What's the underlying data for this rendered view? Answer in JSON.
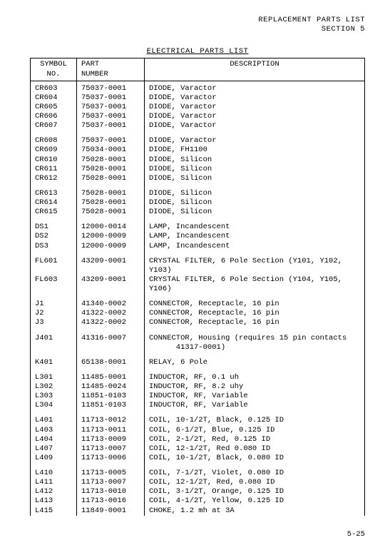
{
  "header": {
    "line1": "REPLACEMENT PARTS LIST",
    "line2": "SECTION 5"
  },
  "table_title": "ELECTRICAL PARTS LIST",
  "columns": {
    "c1": "SYMBOL\nNO.",
    "c2": "PART\nNUMBER",
    "c3": "DESCRIPTION"
  },
  "groups": [
    [
      {
        "sym": "CR603",
        "pn": "75037-0001",
        "desc": "DIODE, Varactor"
      },
      {
        "sym": "CR604",
        "pn": "75037-0001",
        "desc": "DIODE, Varactor"
      },
      {
        "sym": "CR605",
        "pn": "75037-0001",
        "desc": "DIODE, Varactor"
      },
      {
        "sym": "CR606",
        "pn": "75037-0001",
        "desc": "DIODE, Varactor"
      },
      {
        "sym": "CR607",
        "pn": "75037-0001",
        "desc": "DIODE, Varactor"
      }
    ],
    [
      {
        "sym": "CR608",
        "pn": "75037-0001",
        "desc": "DIODE, Varactor"
      },
      {
        "sym": "CR609",
        "pn": "75034-0001",
        "desc": "DIODE, FH1100"
      },
      {
        "sym": "CR610",
        "pn": "75028-0001",
        "desc": "DIODE, Silicon"
      },
      {
        "sym": "CR611",
        "pn": "75028-0001",
        "desc": "DIODE, Silicon"
      },
      {
        "sym": "CR612",
        "pn": "75028-0001",
        "desc": "DIODE, Silicon"
      }
    ],
    [
      {
        "sym": "CR613",
        "pn": "75028-0001",
        "desc": "DIODE, Silicon"
      },
      {
        "sym": "CR614",
        "pn": "75028-0001",
        "desc": "DIODE, Silicon"
      },
      {
        "sym": "CR615",
        "pn": "75028-0001",
        "desc": "DIODE, Silicon"
      }
    ],
    [
      {
        "sym": "DS1",
        "pn": "12000-0014",
        "desc": "LAMP, Incandescent"
      },
      {
        "sym": "DS2",
        "pn": "12000-0009",
        "desc": "LAMP, Incandescent"
      },
      {
        "sym": "DS3",
        "pn": "12000-0009",
        "desc": "LAMP, Incandescent"
      }
    ],
    [
      {
        "sym": "FL601",
        "pn": "43209-0001",
        "desc": "CRYSTAL FILTER, 6 Pole Section (Y101, Y102, Y103)"
      },
      {
        "sym": "FL603",
        "pn": "43209-0001",
        "desc": "CRYSTAL FILTER, 6 Pole Section (Y104, Y105, Y106)"
      }
    ],
    [
      {
        "sym": "J1",
        "pn": "41340-0002",
        "desc": "CONNECTOR, Receptacle, 16 pin"
      },
      {
        "sym": "J2",
        "pn": "41322-0002",
        "desc": "CONNECTOR, Receptacle, 16 pin"
      },
      {
        "sym": "J3",
        "pn": "41322-0002",
        "desc": "CONNECTOR, Receptacle, 16 pin"
      }
    ],
    [
      {
        "sym": "J401",
        "pn": "41316-0007",
        "desc": "CONNECTOR, Housing (requires 15 pin contacts"
      },
      {
        "sym": "",
        "pn": "",
        "desc": "      41317-0001)"
      }
    ],
    [
      {
        "sym": "K401",
        "pn": "65138-0001",
        "desc": "RELAY, 6 Pole"
      }
    ],
    [
      {
        "sym": "L301",
        "pn": "11485-0001",
        "desc": "INDUCTOR, RF, 0.1 uh"
      },
      {
        "sym": "L302",
        "pn": "11485-0024",
        "desc": "INDUCTOR, RF, 8.2 uhy"
      },
      {
        "sym": "L303",
        "pn": "11851-0103",
        "desc": "INDUCTOR, RF, Variable"
      },
      {
        "sym": "L304",
        "pn": "11851-0103",
        "desc": "INDUCTOR, RF, Variable"
      }
    ],
    [
      {
        "sym": "L401",
        "pn": "11713-0012",
        "desc": "COIL, 10-1/2T, Black, 0.125 ID"
      },
      {
        "sym": "L403",
        "pn": "11713-0011",
        "desc": "COIL, 6-1/2T, Blue, 0.125 ID"
      },
      {
        "sym": "L404",
        "pn": "11713-0009",
        "desc": "COIL, 2-1/2T, Red, 0.125 ID"
      },
      {
        "sym": "L407",
        "pn": "11713-0007",
        "desc": "COIL, 12-1/2T, Red 0.080 ID"
      },
      {
        "sym": "L409",
        "pn": "11713-0006",
        "desc": "COIL, 10-1/2T, Black, 0.080 ID"
      }
    ],
    [
      {
        "sym": "L410",
        "pn": "11713-0005",
        "desc": "COIL, 7-1/2T, Violet, 0.080 ID"
      },
      {
        "sym": "L411",
        "pn": "11713-0007",
        "desc": "COIL, 12-1/2T, Red, 0.080 ID"
      },
      {
        "sym": "L412",
        "pn": "11713-0010",
        "desc": "COIL, 3-1/2T, Orange, 0.125 ID"
      },
      {
        "sym": "L413",
        "pn": "11713-0016",
        "desc": "COIL, 4-1/2T, Yellow, 0.125 ID"
      },
      {
        "sym": "L415",
        "pn": "11849-0001",
        "desc": "CHOKE, 1.2 mh at 3A"
      }
    ]
  ],
  "page_number": "5-25"
}
